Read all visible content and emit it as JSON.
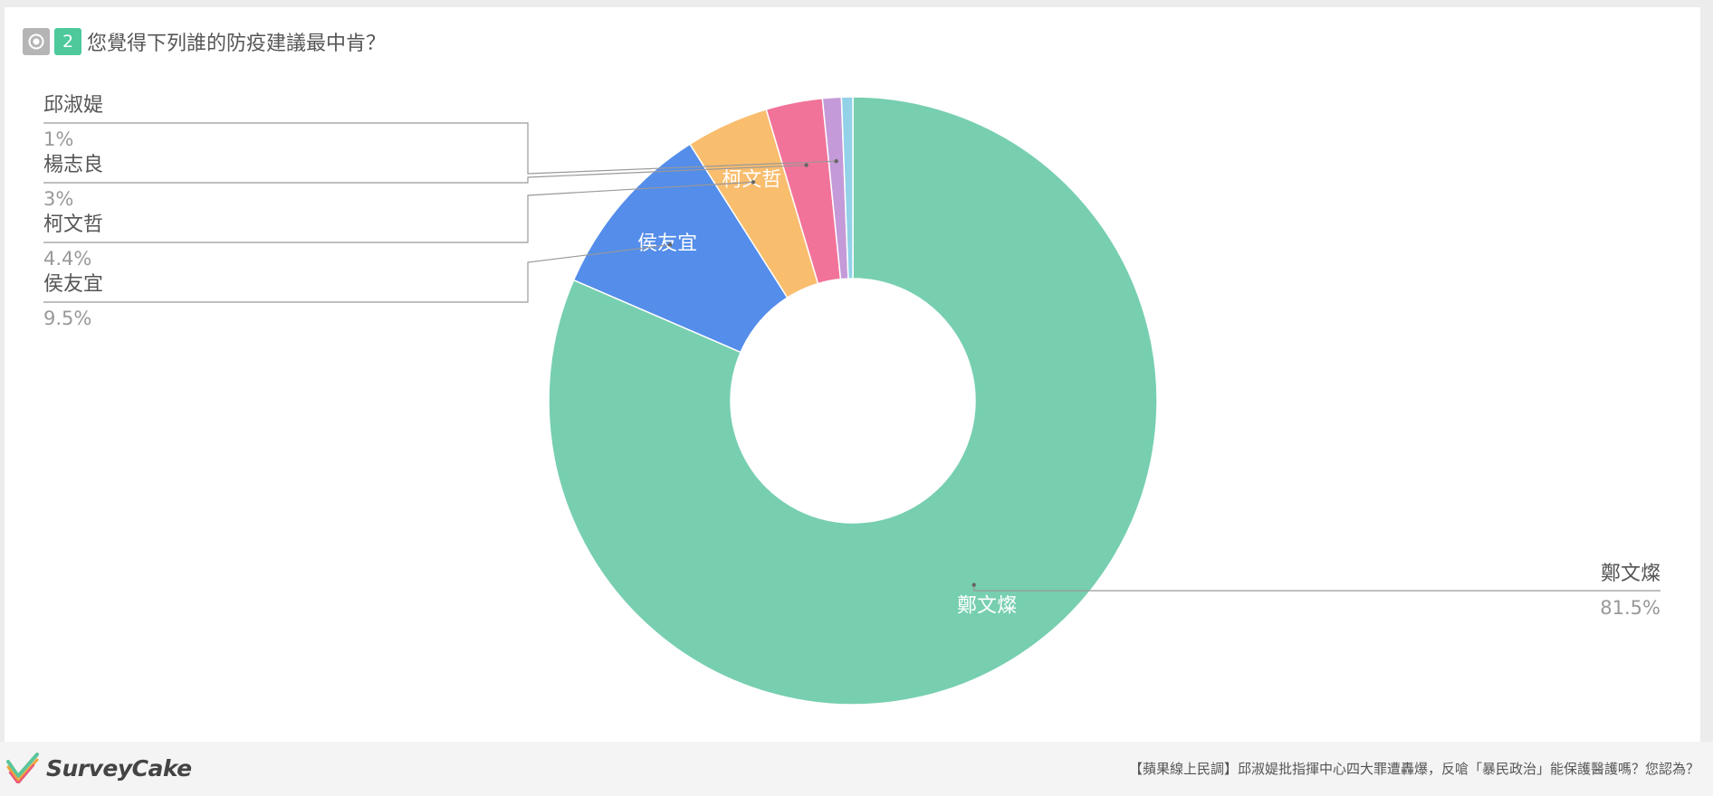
{
  "question": {
    "number": "2",
    "title": "您覺得下列誰的防疫建議最中肯？"
  },
  "chart_data": {
    "type": "pie",
    "donut": true,
    "start_angle_deg": 0,
    "direction": "clockwise",
    "slices": [
      {
        "label": "鄭文燦",
        "value": 81.5,
        "value_label": "81.5%",
        "color": "#77cfb0",
        "inner_label": "鄭文燦"
      },
      {
        "label": "侯友宜",
        "value": 9.5,
        "value_label": "9.5%",
        "color": "#548dea",
        "inner_label": "侯友宜"
      },
      {
        "label": "柯文哲",
        "value": 4.4,
        "value_label": "4.4%",
        "color": "#f9bd6e",
        "inner_label": "柯文哲"
      },
      {
        "label": "楊志良",
        "value": 3,
        "value_label": "3%",
        "color": "#f27399",
        "inner_label": ""
      },
      {
        "label": "邱淑媞",
        "value": 1,
        "value_label": "1%",
        "color": "#c49ad8",
        "inner_label": ""
      },
      {
        "label": "",
        "value": 0.6,
        "value_label": "",
        "color": "#92d1e8",
        "inner_label": ""
      }
    ]
  },
  "footer": {
    "brand": "SurveyCake",
    "survey_title": "【蘋果線上民調】邱淑媞批指揮中心四大罪遭轟爆，反嗆「暴民政治」能保護醫護嗎？您認為？"
  },
  "colors": {
    "accent": "#4dc99b",
    "connector": "#999999"
  }
}
